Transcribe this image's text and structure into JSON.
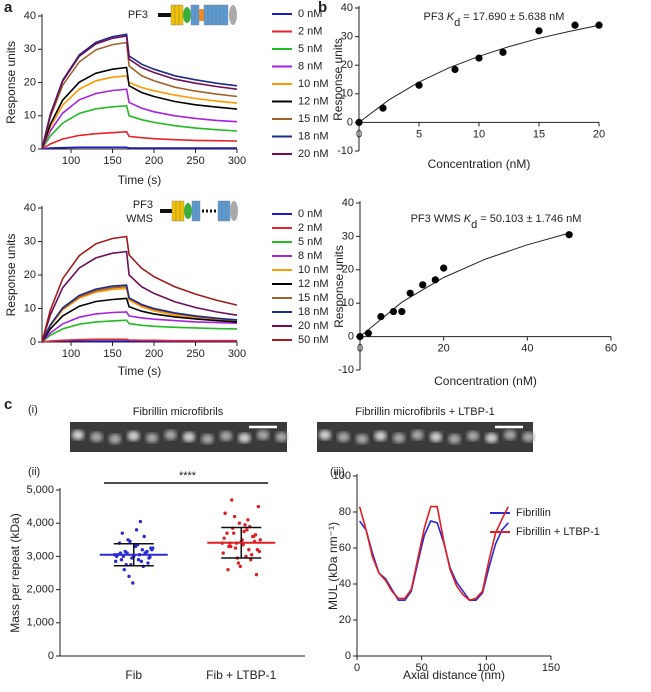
{
  "labels": [
    "a",
    "b",
    "c",
    "(i)",
    "(ii)",
    "(iii)"
  ],
  "images": {
    "captions": [
      "Fibrillin microfibrils",
      "Fibrillin microfibrils + LTBP-1"
    ]
  },
  "chart_data": [
    {
      "type": "line",
      "annotation": [
        "PF3"
      ],
      "xlabel": "Time (s)",
      "ylabel": "Response units",
      "xlim": [
        65,
        300
      ],
      "xticks": [
        100,
        150,
        200,
        250,
        300
      ],
      "ylim": [
        0,
        40
      ],
      "yticks": [
        0,
        10,
        20,
        30,
        40
      ],
      "x": [
        65,
        75,
        90,
        110,
        130,
        150,
        167,
        170,
        185,
        200,
        225,
        250,
        275,
        300
      ],
      "series": [
        {
          "name": "0 nM",
          "color": "#1a1acc",
          "values": [
            0,
            0.3,
            0.4,
            0.5,
            0.5,
            0.5,
            0.5,
            0.3,
            0.3,
            0.3,
            0.3,
            0.3,
            0.3,
            0.3
          ]
        },
        {
          "name": "2 nM",
          "color": "#e8222a",
          "values": [
            0,
            1.5,
            3,
            4.1,
            4.6,
            4.9,
            5.2,
            3.8,
            3.4,
            3.1,
            2.8,
            2.6,
            2.5,
            2.4
          ]
        },
        {
          "name": "5 nM",
          "color": "#22bb22",
          "values": [
            0,
            3.9,
            7.8,
            10.7,
            12.1,
            12.7,
            13,
            10,
            8.8,
            8,
            7,
            6.3,
            5.8,
            5.4
          ]
        },
        {
          "name": "8 nM",
          "color": "#a822dd",
          "values": [
            0,
            5.4,
            10.8,
            14.8,
            16.7,
            17.6,
            18,
            14,
            12.3,
            11.2,
            10,
            9.2,
            8.6,
            8.2
          ]
        },
        {
          "name": "10 nM",
          "color": "#ff9900",
          "values": [
            0,
            6.6,
            13.2,
            18,
            20.5,
            21.6,
            22,
            20,
            18.5,
            17.5,
            16.2,
            15.2,
            14.4,
            13.8
          ]
        },
        {
          "name": "12 nM",
          "color": "#000000",
          "values": [
            0,
            7.4,
            14.7,
            20.1,
            22.8,
            24,
            24.5,
            19,
            17,
            15.8,
            14.3,
            13.3,
            12.6,
            12
          ]
        },
        {
          "name": "15 nM",
          "color": "#a0622d",
          "values": [
            0,
            9.6,
            19.2,
            26.2,
            29.8,
            31.4,
            32,
            25,
            22,
            20.5,
            18.6,
            17.4,
            16.5,
            15.8
          ]
        },
        {
          "name": "18 nM",
          "color": "#1f2a8a",
          "values": [
            0,
            10.4,
            20.7,
            28.3,
            32.1,
            33.8,
            34.5,
            28,
            25.5,
            24,
            22,
            20.8,
            19.8,
            19
          ]
        },
        {
          "name": "20 nM",
          "color": "#6b0f5a",
          "values": [
            0,
            10.2,
            20.4,
            27.9,
            31.6,
            33.3,
            34,
            27,
            24.5,
            23,
            21,
            19.8,
            18.8,
            18
          ]
        }
      ]
    },
    {
      "type": "line",
      "annotation": [
        "PF3",
        "WMS"
      ],
      "xlabel": "Time (s)",
      "ylabel": "Response units",
      "xlim": [
        65,
        300
      ],
      "xticks": [
        100,
        150,
        200,
        250,
        300
      ],
      "ylim": [
        0,
        40
      ],
      "yticks": [
        0,
        10,
        20,
        30,
        40
      ],
      "x": [
        65,
        75,
        90,
        110,
        130,
        150,
        167,
        170,
        185,
        200,
        225,
        250,
        275,
        300
      ],
      "series": [
        {
          "name": "0 nM",
          "color": "#1a1acc",
          "values": [
            0,
            0.2,
            0.3,
            0.3,
            0.3,
            0.3,
            0.3,
            0.2,
            0.2,
            0.2,
            0.2,
            0.2,
            0.2,
            0.2
          ]
        },
        {
          "name": "2 nM",
          "color": "#e8222a",
          "values": [
            0,
            0.3,
            0.5,
            0.7,
            0.8,
            0.8,
            0.8,
            0.6,
            0.5,
            0.5,
            0.4,
            0.4,
            0.4,
            0.4
          ]
        },
        {
          "name": "5 nM",
          "color": "#22bb22",
          "values": [
            0,
            2,
            3.9,
            5.3,
            6,
            6.3,
            6.5,
            5.5,
            5,
            4.7,
            4.4,
            4.2,
            4,
            3.9
          ]
        },
        {
          "name": "8 nM",
          "color": "#a822dd",
          "values": [
            0,
            2.7,
            5.4,
            7.4,
            8.4,
            8.8,
            9,
            7.8,
            7.2,
            6.8,
            6.4,
            6,
            5.8,
            5.6
          ]
        },
        {
          "name": "10 nM",
          "color": "#ff9900",
          "values": [
            0,
            4.8,
            9.6,
            13.1,
            14.9,
            15.7,
            16,
            12.5,
            10.5,
            9.3,
            8,
            7.2,
            6.6,
            6.2
          ]
        },
        {
          "name": "12 nM",
          "color": "#000000",
          "values": [
            0,
            3.9,
            7.8,
            10.7,
            12.1,
            12.7,
            13,
            10.5,
            9.2,
            8.4,
            7.5,
            6.9,
            6.4,
            6
          ]
        },
        {
          "name": "15 nM",
          "color": "#a0622d",
          "values": [
            0,
            5,
            9.9,
            13.5,
            15.3,
            16.2,
            16.5,
            13,
            11,
            9.8,
            8.5,
            7.6,
            7,
            6.5
          ]
        },
        {
          "name": "18 nM",
          "color": "#1f2a8a",
          "values": [
            0,
            5.1,
            10.2,
            13.9,
            15.8,
            16.7,
            17,
            13.2,
            11.2,
            10,
            8.7,
            7.8,
            7.1,
            6.6
          ]
        },
        {
          "name": "20 nM",
          "color": "#6b0f5a",
          "values": [
            0,
            8.1,
            16.2,
            22.1,
            25.1,
            26.5,
            27,
            20,
            16.5,
            14.5,
            12,
            10.3,
            9,
            8
          ]
        },
        {
          "name": "50 nM",
          "color": "#a01c1c",
          "values": [
            0,
            9.5,
            18.9,
            25.8,
            29.3,
            30.9,
            31.5,
            26,
            22,
            19.5,
            16.5,
            14.3,
            12.5,
            11
          ]
        }
      ]
    },
    {
      "type": "scatter",
      "title": [
        "PF3 ",
        "K",
        "d",
        " = 17.690 ± 5.638 nM"
      ],
      "xlabel": "Concentration (nM)",
      "ylabel": "Response units",
      "xlim": [
        0,
        20
      ],
      "xticks": [
        0,
        5,
        10,
        15,
        20
      ],
      "ylim": [
        -10,
        40
      ],
      "yticks": [
        -10,
        0,
        10,
        20,
        30,
        40
      ],
      "color": "#000000",
      "x": [
        0,
        2,
        5,
        8,
        10,
        12,
        15,
        18,
        20
      ],
      "values": [
        0,
        5,
        13,
        18.5,
        22.5,
        24.5,
        32,
        34,
        34
      ],
      "fit": {
        "x": [
          0,
          2.5,
          5,
          7.5,
          10,
          12.5,
          15,
          17.5,
          20
        ],
        "y": [
          0,
          7.9,
          14.1,
          19.1,
          23.1,
          26.5,
          29.4,
          31.8,
          34
        ]
      }
    },
    {
      "type": "scatter",
      "title": [
        "PF3 WMS ",
        "K",
        "d",
        " = 50.103 ± 1.746 nM"
      ],
      "xlabel": "Concentration (nM)",
      "ylabel": "Response units",
      "xlim": [
        0,
        60
      ],
      "xticks": [
        0,
        20,
        40,
        60
      ],
      "ylim": [
        -10,
        40
      ],
      "yticks": [
        -10,
        0,
        10,
        20,
        30,
        40
      ],
      "color": "#000000",
      "x": [
        0,
        2,
        5,
        8,
        10,
        12,
        15,
        18,
        20,
        50
      ],
      "values": [
        0,
        1,
        6,
        7.5,
        7.5,
        13,
        15.5,
        17,
        20.5,
        30.5
      ],
      "fit": {
        "x": [
          0,
          10,
          20,
          30,
          40,
          50
        ],
        "y": [
          0,
          10.3,
          17.7,
          23.2,
          27.5,
          31
        ]
      }
    },
    {
      "type": "dot",
      "ylabel": "Mass per repeat (kDa)",
      "annotation": "****",
      "ylim": [
        0,
        5000
      ],
      "yticks": [
        0,
        {
          "value": 1000,
          "label": "1,000"
        },
        {
          "value": 2000,
          "label": "2,000"
        },
        {
          "value": 3000,
          "label": "3,000"
        },
        {
          "value": 4000,
          "label": "4,000"
        },
        {
          "value": 5000,
          "label": "5,000"
        }
      ],
      "groups": [
        {
          "name": "Fib",
          "color": "#2b2bd6",
          "mean": 3050,
          "sd": 330,
          "values": [
            3050,
            2980,
            3120,
            3200,
            2900,
            3350,
            2750,
            3100,
            3000,
            3400,
            2850,
            3250,
            3150,
            2700,
            3050,
            3300,
            2950,
            3500,
            2600,
            3100,
            3000,
            3200,
            2800,
            3600,
            4050,
            3800,
            2200,
            2400,
            3150,
            2900,
            3050,
            3250,
            2950,
            3100,
            2850,
            3350,
            3000,
            3450,
            2750,
            3700
          ]
        },
        {
          "name": "Fib + LTBP-1",
          "color": "#e02020",
          "mean": 3410,
          "sd": 460,
          "values": [
            3400,
            3200,
            3600,
            3900,
            3000,
            3500,
            2800,
            4200,
            3300,
            3700,
            3100,
            4500,
            3450,
            2900,
            3800,
            3350,
            4000,
            3250,
            4700,
            2600,
            3550,
            3150,
            3650,
            3050,
            4100,
            3750,
            2700,
            3400,
            3850,
            3300,
            4300,
            3500,
            2450,
            3600,
            3200,
            3950,
            3450,
            2950,
            3700,
            3400
          ]
        }
      ]
    },
    {
      "type": "line",
      "xlabel": "Axial distance (nm)",
      "ylabel": "MUL (kDa nm⁻¹)",
      "xlim": [
        0,
        150
      ],
      "xticks": [
        0,
        50,
        100,
        150
      ],
      "ylim": [
        0,
        100
      ],
      "yticks": [
        0,
        20,
        40,
        60,
        80,
        100
      ],
      "x": [
        2,
        7,
        12,
        17,
        22,
        27,
        32,
        37,
        42,
        47,
        52,
        57,
        62,
        67,
        72,
        77,
        82,
        87,
        92,
        97,
        102,
        107,
        112,
        117
      ],
      "series": [
        {
          "name": "Fibrillin",
          "color": "#2b2bd6",
          "values": [
            75,
            70,
            57,
            46,
            43,
            37,
            31,
            31,
            36,
            52,
            67,
            75,
            74,
            63,
            49,
            41,
            36,
            31,
            31,
            35,
            49,
            62,
            70,
            74
          ]
        },
        {
          "name": "Fibrillin + LTBP-1",
          "color": "#e02020",
          "values": [
            83,
            70,
            55,
            46,
            42,
            36,
            32,
            32,
            37,
            54,
            71,
            83,
            83,
            64,
            48,
            39,
            34,
            31,
            32,
            36,
            53,
            68,
            76,
            83
          ]
        }
      ]
    }
  ]
}
